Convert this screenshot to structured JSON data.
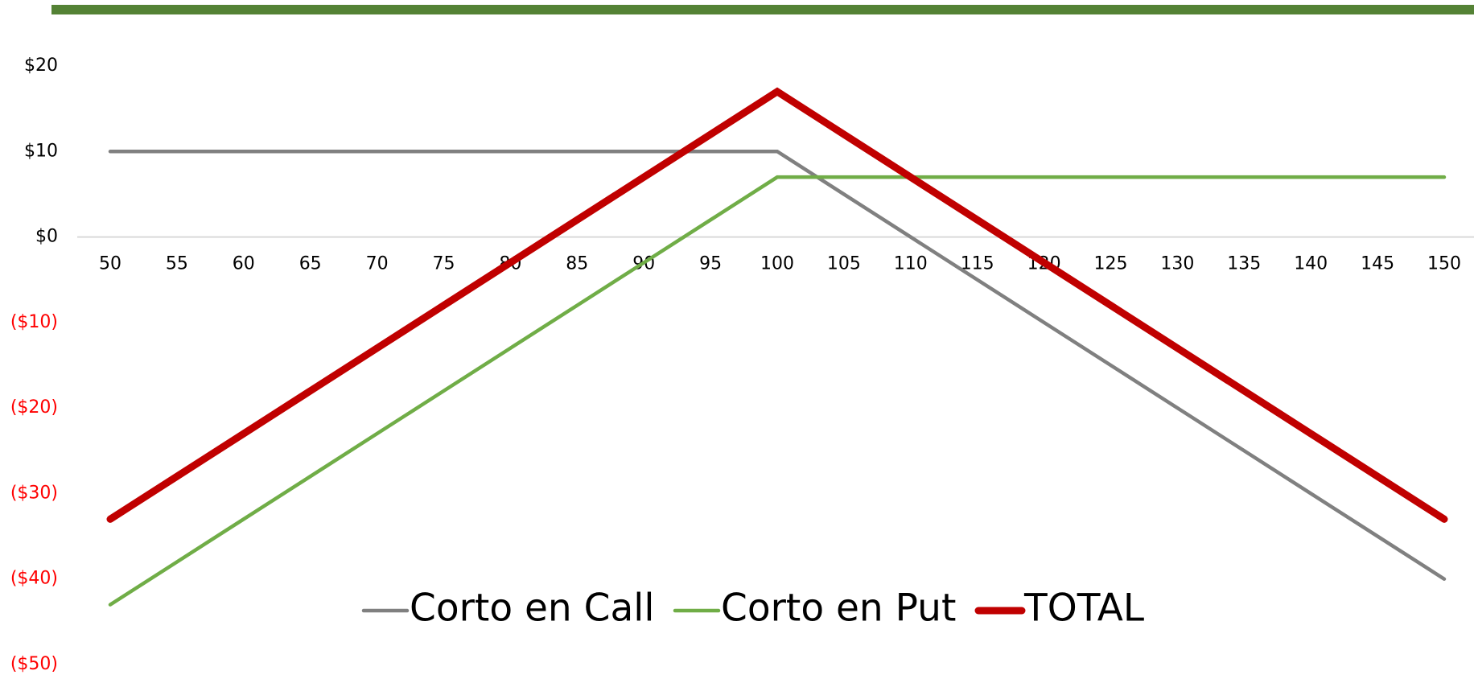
{
  "chart_data": {
    "type": "line",
    "categories": [
      "50",
      "55",
      "60",
      "65",
      "70",
      "75",
      "80",
      "85",
      "90",
      "95",
      "100",
      "105",
      "110",
      "115",
      "120",
      "125",
      "130",
      "135",
      "140",
      "145",
      "150"
    ],
    "series": [
      {
        "name": "Corto en Call",
        "color": "#808080",
        "width": 4.5,
        "values": [
          10,
          10,
          10,
          10,
          10,
          10,
          10,
          10,
          10,
          10,
          10,
          5,
          0,
          -5,
          -10,
          -15,
          -20,
          -25,
          -30,
          -35,
          -40
        ]
      },
      {
        "name": "Corto en Put",
        "color": "#70ad47",
        "width": 4.5,
        "values": [
          -43,
          -38,
          -33,
          -28,
          -23,
          -18,
          -13,
          -8,
          -3,
          2,
          7,
          7,
          7,
          7,
          7,
          7,
          7,
          7,
          7,
          7,
          7
        ]
      },
      {
        "name": "TOTAL",
        "color": "#c00000",
        "width": 9,
        "values": [
          -33,
          -28,
          -23,
          -18,
          -13,
          -8,
          -3,
          2,
          7,
          12,
          17,
          12,
          7,
          2,
          -3,
          -8,
          -13,
          -18,
          -23,
          -28,
          -33
        ]
      }
    ],
    "ylim": [
      -50,
      20
    ],
    "yticks": [
      {
        "value": 20,
        "label": "$20"
      },
      {
        "value": 10,
        "label": "$10"
      },
      {
        "value": 0,
        "label": "$0"
      },
      {
        "value": -10,
        "label": "($10)"
      },
      {
        "value": -20,
        "label": "($20)"
      },
      {
        "value": -30,
        "label": "($30)"
      },
      {
        "value": -40,
        "label": "($40)"
      },
      {
        "value": -50,
        "label": "($50)"
      }
    ],
    "negative_label_color": "#ff0000",
    "legend": "bottom"
  }
}
